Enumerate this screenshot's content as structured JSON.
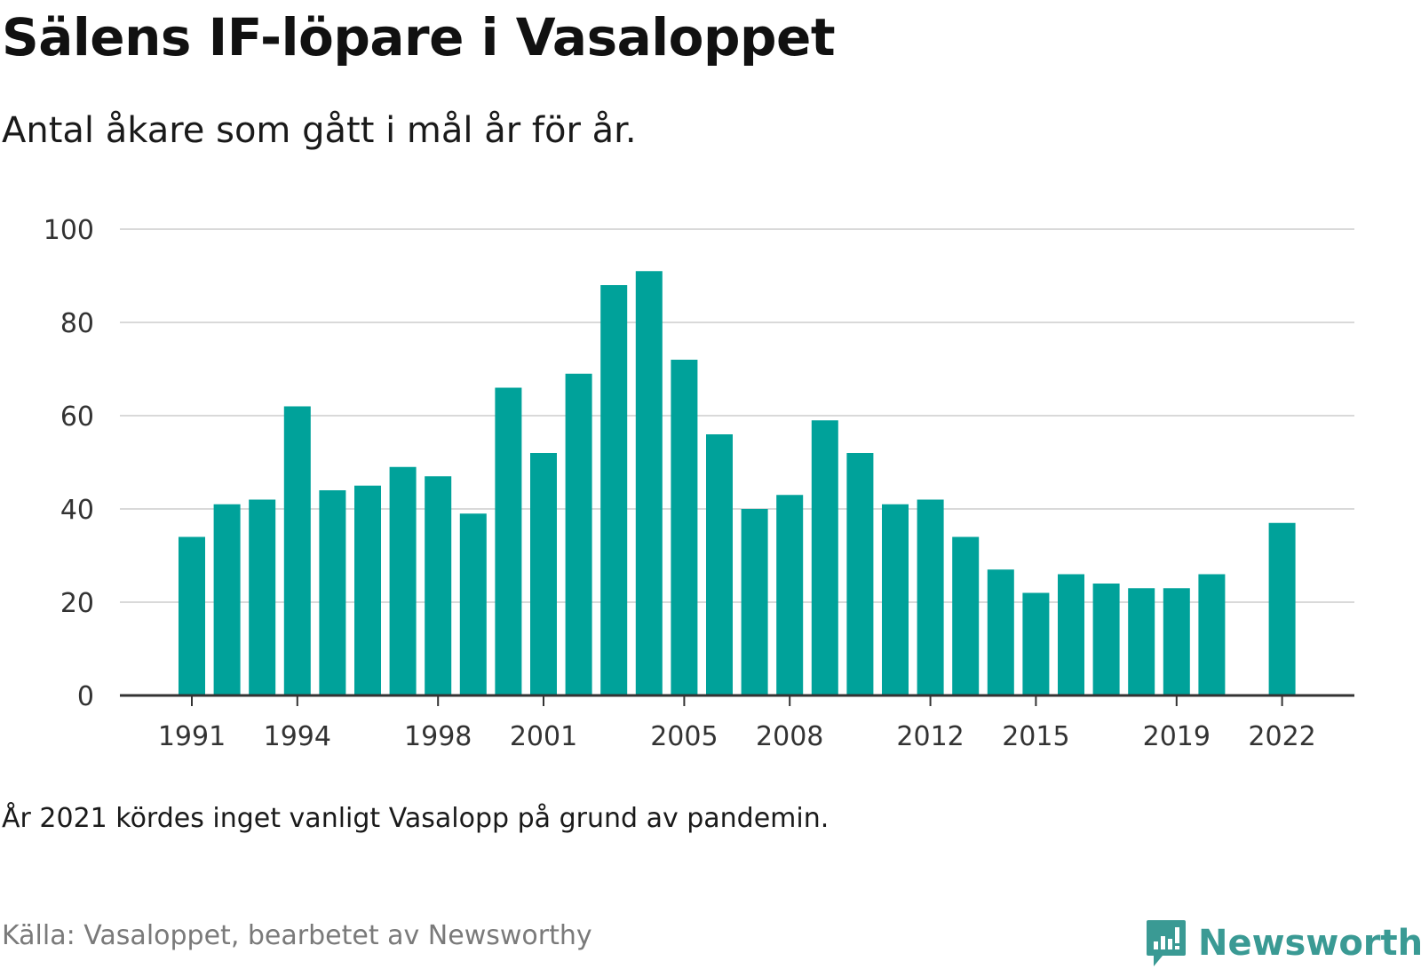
{
  "header": {
    "title": "Sälens IF-löpare i Vasaloppet",
    "subtitle": "Antal åkare som gått i mål år för år."
  },
  "footer": {
    "note": "År 2021 kördes inget vanligt Vasalopp på grund av pandemin.",
    "source": "Källa: Vasaloppet, bearbetet av Newsworthy",
    "brand": "Newsworthy"
  },
  "colors": {
    "bar": "#00a29a",
    "grid": "#d9d9d9",
    "axis": "#333333",
    "brand": "#3a9a94"
  },
  "chart_data": {
    "type": "bar",
    "title": "",
    "xlabel": "",
    "ylabel": "",
    "categories": [
      1991,
      1992,
      1993,
      1994,
      1995,
      1996,
      1997,
      1998,
      1999,
      2000,
      2001,
      2002,
      2003,
      2004,
      2005,
      2006,
      2007,
      2008,
      2009,
      2010,
      2011,
      2012,
      2013,
      2014,
      2015,
      2016,
      2017,
      2018,
      2019,
      2020,
      2021,
      2022
    ],
    "values": [
      34,
      41,
      42,
      62,
      44,
      45,
      49,
      47,
      39,
      66,
      52,
      69,
      88,
      91,
      72,
      56,
      40,
      43,
      59,
      52,
      41,
      42,
      34,
      27,
      22,
      26,
      24,
      23,
      23,
      26,
      null,
      37
    ],
    "ylim": [
      0,
      100
    ],
    "yticks": [
      0,
      20,
      40,
      60,
      80,
      100
    ],
    "xticks": [
      1991,
      1994,
      1998,
      2001,
      2005,
      2008,
      2012,
      2015,
      2019,
      2022
    ],
    "grid": true,
    "legend": "none"
  }
}
